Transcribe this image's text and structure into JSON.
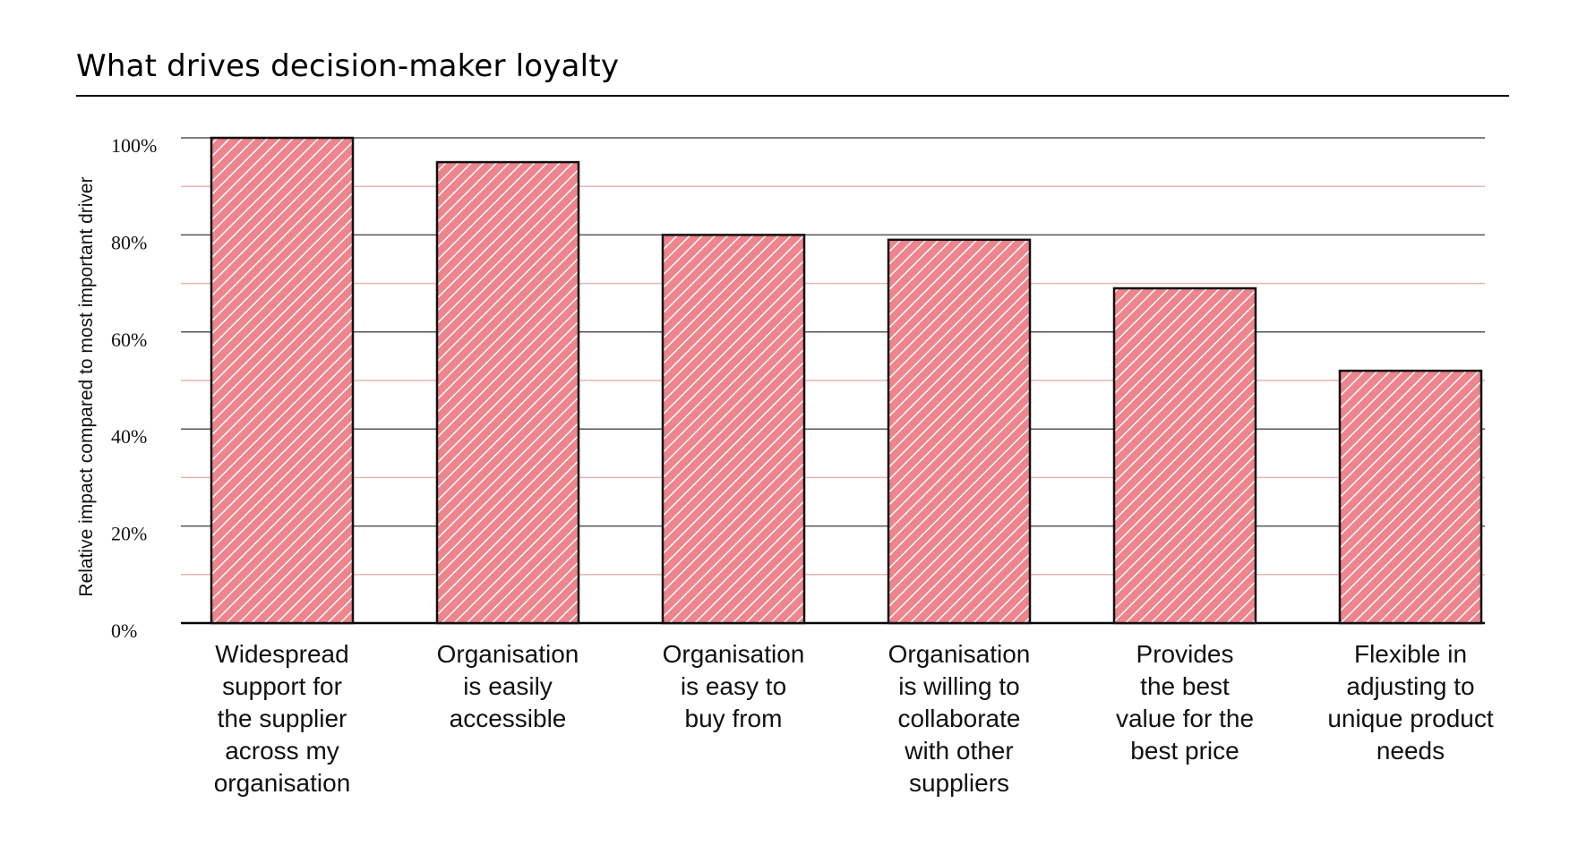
{
  "chart_data": {
    "type": "bar",
    "title": "What drives decision-maker loyalty",
    "ylabel": "Relative impact compared to most important driver",
    "xlabel": "",
    "ylim": [
      0,
      100
    ],
    "yticks": [
      "0%",
      "20%",
      "40%",
      "60%",
      "80%",
      "100%"
    ],
    "categories": [
      [
        "Widespread",
        "support for",
        "the supplier",
        "across my",
        "organisation"
      ],
      [
        "Organisation",
        "is easily",
        "accessible"
      ],
      [
        "Organisation",
        "is easy to",
        "buy from"
      ],
      [
        "Organisation",
        "is willing to",
        "collaborate",
        "with other",
        "suppliers"
      ],
      [
        "Provides",
        "the best",
        "value for the",
        "best price"
      ],
      [
        "Flexible in",
        "adjusting to",
        "unique product",
        "needs"
      ]
    ],
    "values": [
      100,
      95,
      80,
      79,
      69,
      52
    ],
    "grid": true,
    "colors": {
      "bar_fill": "#ee848c",
      "hatch": "#ffffff",
      "bar_stroke": "#111111",
      "major_grid": "#555555",
      "minor_grid": "#e8b4b4"
    }
  }
}
